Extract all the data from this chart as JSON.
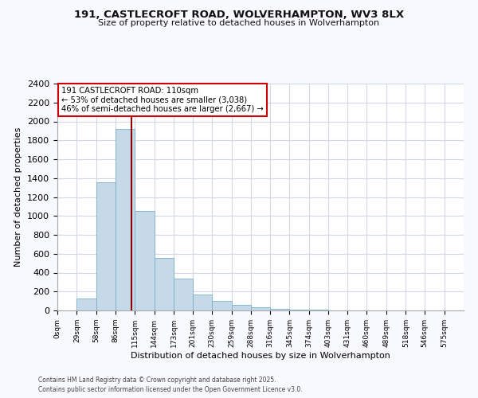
{
  "title": "191, CASTLECROFT ROAD, WOLVERHAMPTON, WV3 8LX",
  "subtitle": "Size of property relative to detached houses in Wolverhampton",
  "xlabel": "Distribution of detached houses by size in Wolverhampton",
  "ylabel": "Number of detached properties",
  "bar_left_edges": [
    0,
    29,
    58,
    86,
    115,
    144,
    173,
    201,
    230,
    259,
    288,
    316,
    345,
    374,
    403,
    431,
    460,
    489,
    518,
    546
  ],
  "bar_widths": [
    29,
    29,
    28,
    29,
    29,
    29,
    28,
    29,
    29,
    29,
    28,
    29,
    29,
    29,
    28,
    29,
    29,
    29,
    28,
    29
  ],
  "bar_heights": [
    0,
    125,
    1355,
    1920,
    1055,
    560,
    335,
    165,
    105,
    60,
    30,
    20,
    10,
    5,
    2,
    1,
    0,
    0,
    0,
    0
  ],
  "bar_color": "#c6d9e8",
  "bar_edge_color": "#7aafc8",
  "x_tick_labels": [
    "0sqm",
    "29sqm",
    "58sqm",
    "86sqm",
    "115sqm",
    "144sqm",
    "173sqm",
    "201sqm",
    "230sqm",
    "259sqm",
    "288sqm",
    "316sqm",
    "345sqm",
    "374sqm",
    "403sqm",
    "431sqm",
    "460sqm",
    "489sqm",
    "518sqm",
    "546sqm",
    "575sqm"
  ],
  "x_tick_positions": [
    0,
    29,
    58,
    86,
    115,
    144,
    173,
    201,
    230,
    259,
    288,
    316,
    345,
    374,
    403,
    431,
    460,
    489,
    518,
    546,
    575
  ],
  "ylim": [
    0,
    2400
  ],
  "xlim": [
    0,
    604
  ],
  "vline_x": 110,
  "vline_color": "#8b0000",
  "annotation_title": "191 CASTLECROFT ROAD: 110sqm",
  "annotation_line1": "← 53% of detached houses are smaller (3,038)",
  "annotation_line2": "46% of semi-detached houses are larger (2,667) →",
  "annotation_box_facecolor": "#ffffff",
  "annotation_box_edgecolor": "#cc0000",
  "plot_bg_color": "#ffffff",
  "fig_bg_color": "#f8f8ff",
  "grid_color": "#d0d8e8",
  "footer1": "Contains HM Land Registry data © Crown copyright and database right 2025.",
  "footer2": "Contains public sector information licensed under the Open Government Licence v3.0."
}
